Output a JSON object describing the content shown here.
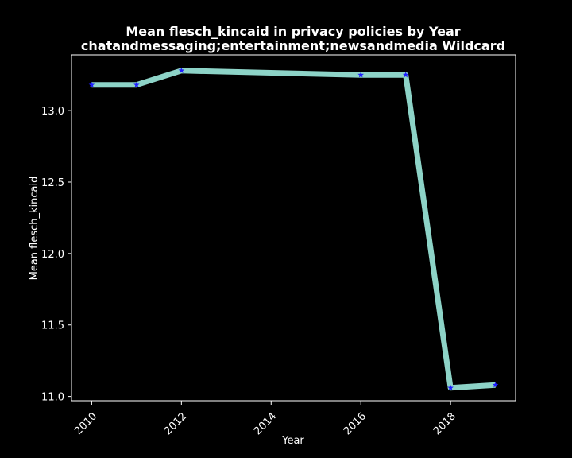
{
  "chart_data": {
    "type": "line",
    "title": "Mean flesch_kincaid in privacy policies by Year",
    "subtitle": "chatandmessaging;entertainment;newsandmedia Wildcard",
    "xlabel": "Year",
    "ylabel": "Mean flesch_kincaid",
    "x": [
      2010,
      2011,
      2012,
      2016,
      2017,
      2018,
      2019
    ],
    "series": [
      {
        "values": [
          13.18,
          13.18,
          13.28,
          13.25,
          13.25,
          11.06,
          11.08
        ]
      }
    ],
    "xlim": [
      2009.55,
      2019.45
    ],
    "ylim": [
      10.97,
      13.39
    ],
    "xticks": [
      2010,
      2012,
      2014,
      2016,
      2018
    ],
    "yticks": [
      11.0,
      11.5,
      12.0,
      12.5,
      13.0
    ],
    "ytick_labels": [
      "11.0",
      "11.5",
      "12.0",
      "12.5",
      "13.0"
    ],
    "grid": false,
    "legend": "none",
    "colors": {
      "background": "#000000",
      "line": "#8dd3c7",
      "marker": "#1f1fff",
      "text": "#ffffff",
      "axes": "#ffffff"
    }
  }
}
